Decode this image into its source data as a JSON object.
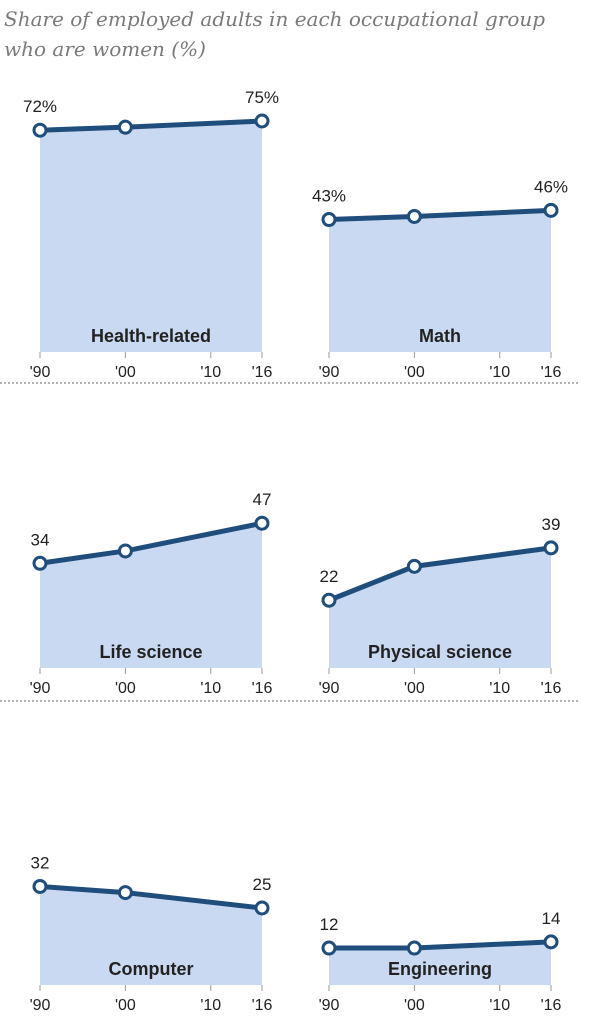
{
  "title": {
    "line1": "Share of employed adults in each occupational group",
    "line2": "who are women (%)"
  },
  "colors": {
    "line": "#1f4e7d",
    "area": "#c9d9f1",
    "text": "#222222",
    "title": "#7a7a7a",
    "divider": "#666666"
  },
  "chart_data": [
    {
      "type": "area",
      "panel": "Health-related",
      "x": [
        1990,
        2000,
        2016
      ],
      "values": [
        72,
        73,
        75
      ],
      "labels": [
        "72%",
        "",
        "75%"
      ],
      "ylim": [
        0,
        100
      ],
      "xticks": [
        "'90",
        "'00",
        "'10",
        "'16"
      ]
    },
    {
      "type": "area",
      "panel": "Math",
      "x": [
        1990,
        2000,
        2016
      ],
      "values": [
        43,
        44,
        46
      ],
      "labels": [
        "43%",
        "",
        "46%"
      ],
      "ylim": [
        0,
        100
      ],
      "xticks": [
        "'90",
        "'00",
        "'10",
        "'16"
      ]
    },
    {
      "type": "area",
      "panel": "Life science",
      "x": [
        1990,
        2000,
        2016
      ],
      "values": [
        34,
        38,
        47
      ],
      "labels": [
        "34",
        "",
        "47"
      ],
      "ylim": [
        0,
        100
      ],
      "xticks": [
        "'90",
        "'00",
        "'10",
        "'16"
      ]
    },
    {
      "type": "area",
      "panel": "Physical science",
      "x": [
        1990,
        2000,
        2016
      ],
      "values": [
        22,
        33,
        39
      ],
      "labels": [
        "22",
        "",
        "39"
      ],
      "ylim": [
        0,
        100
      ],
      "xticks": [
        "'90",
        "'00",
        "'10",
        "'16"
      ]
    },
    {
      "type": "area",
      "panel": "Computer",
      "x": [
        1990,
        2000,
        2016
      ],
      "values": [
        32,
        30,
        25
      ],
      "labels": [
        "32",
        "",
        "25"
      ],
      "ylim": [
        0,
        100
      ],
      "xticks": [
        "'90",
        "'00",
        "'10",
        "'16"
      ]
    },
    {
      "type": "area",
      "panel": "Engineering",
      "x": [
        1990,
        2000,
        2016
      ],
      "values": [
        12,
        12,
        14
      ],
      "labels": [
        "12",
        "",
        "14"
      ],
      "ylim": [
        0,
        100
      ],
      "xticks": [
        "'90",
        "'00",
        "'10",
        "'16"
      ]
    }
  ]
}
